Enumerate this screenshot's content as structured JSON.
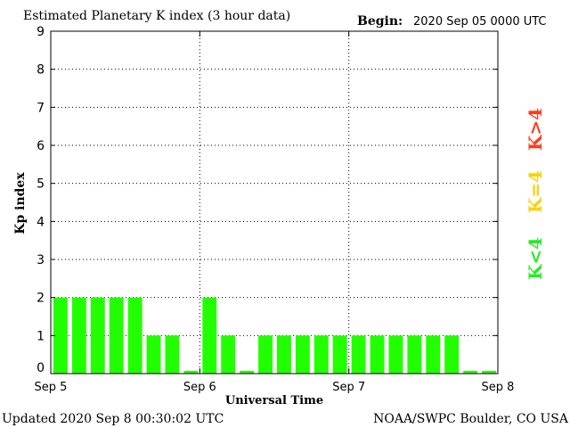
{
  "header": {
    "title": "Estimated Planetary K index (3 hour data)",
    "begin_label": "Begin:",
    "begin_value": "2020 Sep 05 0000 UTC"
  },
  "footer": {
    "updated": "Updated 2020 Sep  8 00:30:02 UTC",
    "source": "NOAA/SWPC Boulder, CO USA"
  },
  "side_legend": [
    {
      "label": "K>4",
      "color": "#ff3b1f"
    },
    {
      "label": "K=4",
      "color": "#ffd000"
    },
    {
      "label": "K<4",
      "color": "#22ee22"
    }
  ],
  "chart_data": {
    "type": "bar",
    "xlabel": "Universal Time",
    "ylabel": "Kp index",
    "ylim": [
      0,
      9
    ],
    "yticks": [
      0,
      1,
      2,
      3,
      4,
      5,
      6,
      7,
      8,
      9
    ],
    "x_tick_labels": [
      "Sep 5",
      "Sep 6",
      "Sep 7",
      "Sep 8"
    ],
    "grid": "dotted vertical at day boundaries, dotted horizontal at each integer",
    "bar_color": "#22ff00",
    "values": [
      2,
      2,
      2,
      2,
      2,
      1,
      1,
      0,
      2,
      1,
      0,
      1,
      1,
      1,
      1,
      1,
      1,
      1,
      1,
      1,
      1,
      1,
      0,
      0
    ]
  }
}
